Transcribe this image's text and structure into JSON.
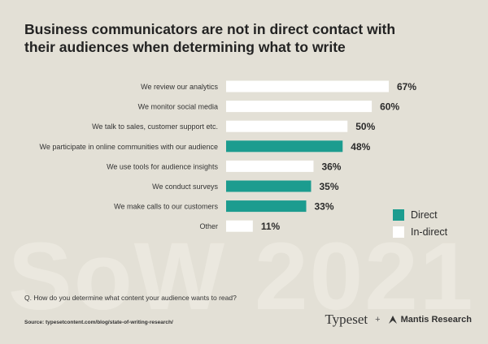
{
  "title": {
    "line1": "Business communicators are not in direct contact with",
    "line2": "their audiences when determining what to write"
  },
  "chart_data": {
    "type": "bar",
    "orientation": "horizontal",
    "categories": [
      "We review our analytics",
      "We monitor social media",
      "We talk to sales, customer support etc.",
      "We participate in online communities with our audience",
      "We use tools for audience insights",
      "We conduct surveys",
      "We make calls to our customers",
      "Other"
    ],
    "values": [
      67,
      60,
      50,
      48,
      36,
      35,
      33,
      11
    ],
    "value_labels": [
      "67%",
      "60%",
      "50%",
      "48%",
      "36%",
      "35%",
      "33%",
      "11%"
    ],
    "bar_types": [
      "In-direct",
      "In-direct",
      "In-direct",
      "Direct",
      "In-direct",
      "Direct",
      "Direct",
      "In-direct"
    ],
    "colors": {
      "Direct": "#1c9c8f",
      "In-direct": "#ffffff"
    },
    "legend": [
      {
        "label": "Direct",
        "color": "#1c9c8f"
      },
      {
        "label": "In-direct",
        "color": "#ffffff"
      }
    ],
    "legend_position": "right"
  },
  "question": "Q. How do you determine what content your audience wants to read?",
  "source": "Source: typesetcontent.com/blog/state-of-writing-research/",
  "watermark": "SoW 2021",
  "brands": {
    "typeset": "Typeset",
    "plus": "+",
    "mantis": "Mantis Research"
  }
}
